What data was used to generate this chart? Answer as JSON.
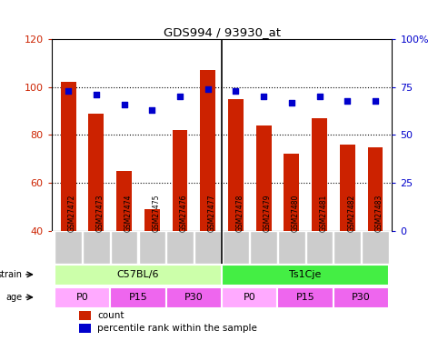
{
  "title": "GDS994 / 93930_at",
  "categories": [
    "GSM27472",
    "GSM27473",
    "GSM27474",
    "GSM27475",
    "GSM27476",
    "GSM27477",
    "GSM27478",
    "GSM27479",
    "GSM27480",
    "GSM27481",
    "GSM27482",
    "GSM27483"
  ],
  "bar_values": [
    102,
    89,
    65,
    49,
    82,
    107,
    95,
    84,
    72,
    87,
    76,
    75
  ],
  "dot_values": [
    73,
    71,
    66,
    63,
    70,
    74,
    73,
    70,
    67,
    70,
    68,
    68
  ],
  "bar_color": "#cc2200",
  "dot_color": "#0000cc",
  "ylim_left": [
    40,
    120
  ],
  "ylim_right": [
    0,
    100
  ],
  "yticks_left": [
    40,
    60,
    80,
    100,
    120
  ],
  "yticks_right": [
    0,
    25,
    50,
    75,
    100
  ],
  "strain_labels": [
    "C57BL/6",
    "Ts1Cje"
  ],
  "strain_color_light": "#ccffaa",
  "strain_color_dark": "#44ee44",
  "age_color": "#ee66ee",
  "age_color_light": "#ffaaff",
  "legend_count_color": "#cc2200",
  "legend_pct_color": "#0000cc",
  "background_color": "#ffffff",
  "axis_label_color_left": "#cc2200",
  "axis_label_color_right": "#0000cc",
  "xticklabel_bg": "#cccccc"
}
